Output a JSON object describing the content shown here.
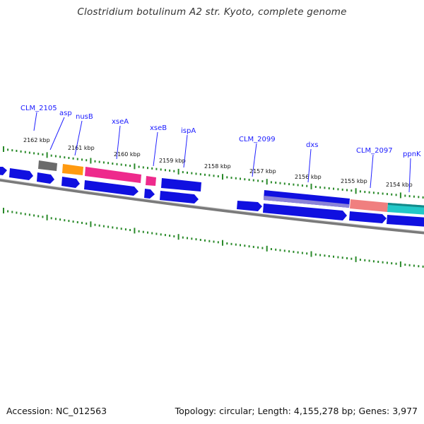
{
  "title": "Clostridium botulinum A2 str. Kyoto, complete genome",
  "footer": {
    "accession": "Accession: NC_012563",
    "topology": "Topology: circular; Length: 4,155,278 bp; Genes: 3,977"
  },
  "colors": {
    "cds": "#1010e0",
    "label": "#1a1aff",
    "tick": "#2a8a2a",
    "backbone": "#7a7a7a",
    "gray_gene": "#6b6b6b",
    "orange_gene": "#ff9a10",
    "pink_gene": "#ee2a8c",
    "salmon_gene": "#f07f7f",
    "teal_gene": "#22c8c8",
    "lavender_gene": "#8a82d8"
  },
  "kbp_ticks": [
    "2162 kbp",
    "2161 kbp",
    "2160 kbp",
    "2159 kbp",
    "2158 kbp",
    "2157 kbp",
    "2156 kbp",
    "2155 kbp",
    "2154 kbp"
  ],
  "gene_labels": [
    "CLM_2105",
    "asp",
    "nusB",
    "xseA",
    "xseB",
    "ispA",
    "CLM_2099",
    "dxs",
    "CLM_2097",
    "ppnK"
  ]
}
